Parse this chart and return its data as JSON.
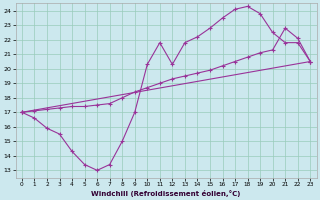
{
  "xlabel": "Windchill (Refroidissement éolien,°C)",
  "bg_color": "#cce8ee",
  "grid_color": "#99ccbb",
  "line_color": "#993399",
  "xlim": [
    -0.5,
    23.5
  ],
  "ylim": [
    12.5,
    24.5
  ],
  "xticks": [
    0,
    1,
    2,
    3,
    4,
    5,
    6,
    7,
    8,
    9,
    10,
    11,
    12,
    13,
    14,
    15,
    16,
    17,
    18,
    19,
    20,
    21,
    22,
    23
  ],
  "yticks": [
    13,
    14,
    15,
    16,
    17,
    18,
    19,
    20,
    21,
    22,
    23,
    24
  ],
  "line1_x": [
    0,
    1,
    2,
    3,
    4,
    5,
    6,
    7,
    8,
    9,
    10,
    11,
    12,
    13,
    14,
    15,
    16,
    17,
    18,
    19,
    20,
    21,
    22,
    23
  ],
  "line1_y": [
    17.0,
    16.6,
    15.9,
    15.5,
    14.3,
    13.4,
    13.0,
    13.4,
    15.0,
    17.0,
    20.3,
    21.8,
    20.3,
    21.8,
    22.2,
    22.8,
    23.5,
    24.1,
    24.3,
    23.8,
    22.5,
    21.8,
    21.8,
    20.5
  ],
  "line2_x": [
    0,
    1,
    2,
    3,
    4,
    5,
    6,
    7,
    8,
    9,
    10,
    11,
    12,
    13,
    14,
    15,
    16,
    17,
    18,
    19,
    20,
    21,
    22,
    23
  ],
  "line2_y": [
    17.0,
    17.1,
    17.2,
    17.3,
    17.4,
    17.4,
    17.5,
    17.6,
    18.0,
    18.4,
    18.7,
    19.0,
    19.3,
    19.5,
    19.7,
    19.9,
    20.2,
    20.5,
    20.8,
    21.1,
    21.3,
    22.8,
    22.1,
    20.5
  ],
  "line3_x": [
    0,
    23
  ],
  "line3_y": [
    17.0,
    20.5
  ],
  "marker": "+"
}
